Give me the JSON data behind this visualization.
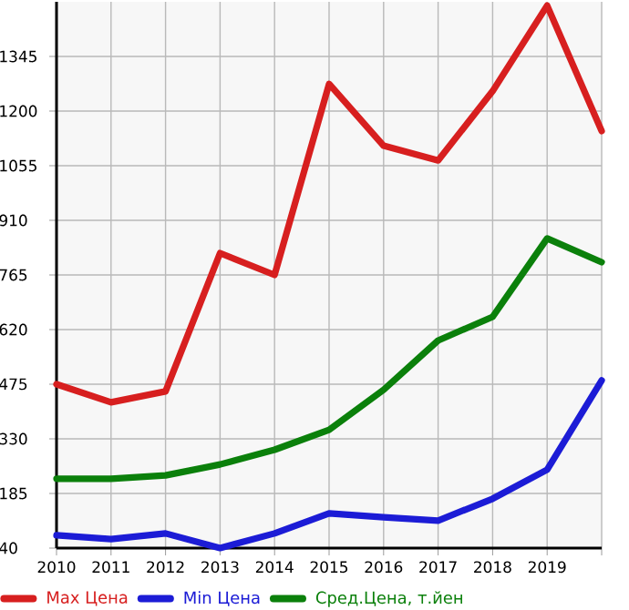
{
  "chart_data": {
    "type": "line",
    "categories": [
      "2010",
      "2011",
      "2012",
      "2013",
      "2014",
      "2015",
      "2016",
      "2017",
      "2018",
      "2019",
      null
    ],
    "series": [
      {
        "name": "Max Цена",
        "color": "#d71f1f",
        "values": [
          475,
          427,
          456,
          823,
          765,
          1272,
          1108,
          1069,
          1253,
          1480,
          1147
        ]
      },
      {
        "name": "Min Цена",
        "color": "#1c1cd6",
        "values": [
          74,
          64,
          79,
          40,
          79,
          132,
          122,
          113,
          171,
          248,
          485
        ]
      },
      {
        "name": "Сред.Цена, т.йен",
        "color": "#0b800b",
        "values": [
          224,
          224,
          233,
          262,
          301,
          354,
          460,
          591,
          654,
          862,
          799
        ]
      }
    ],
    "ylim": [
      40,
      1490
    ],
    "yticks": [
      40,
      185,
      330,
      475,
      620,
      765,
      910,
      1055,
      1200,
      1345
    ],
    "grid": true,
    "legend": "bottom",
    "marker": "none",
    "line_style": "solid"
  }
}
